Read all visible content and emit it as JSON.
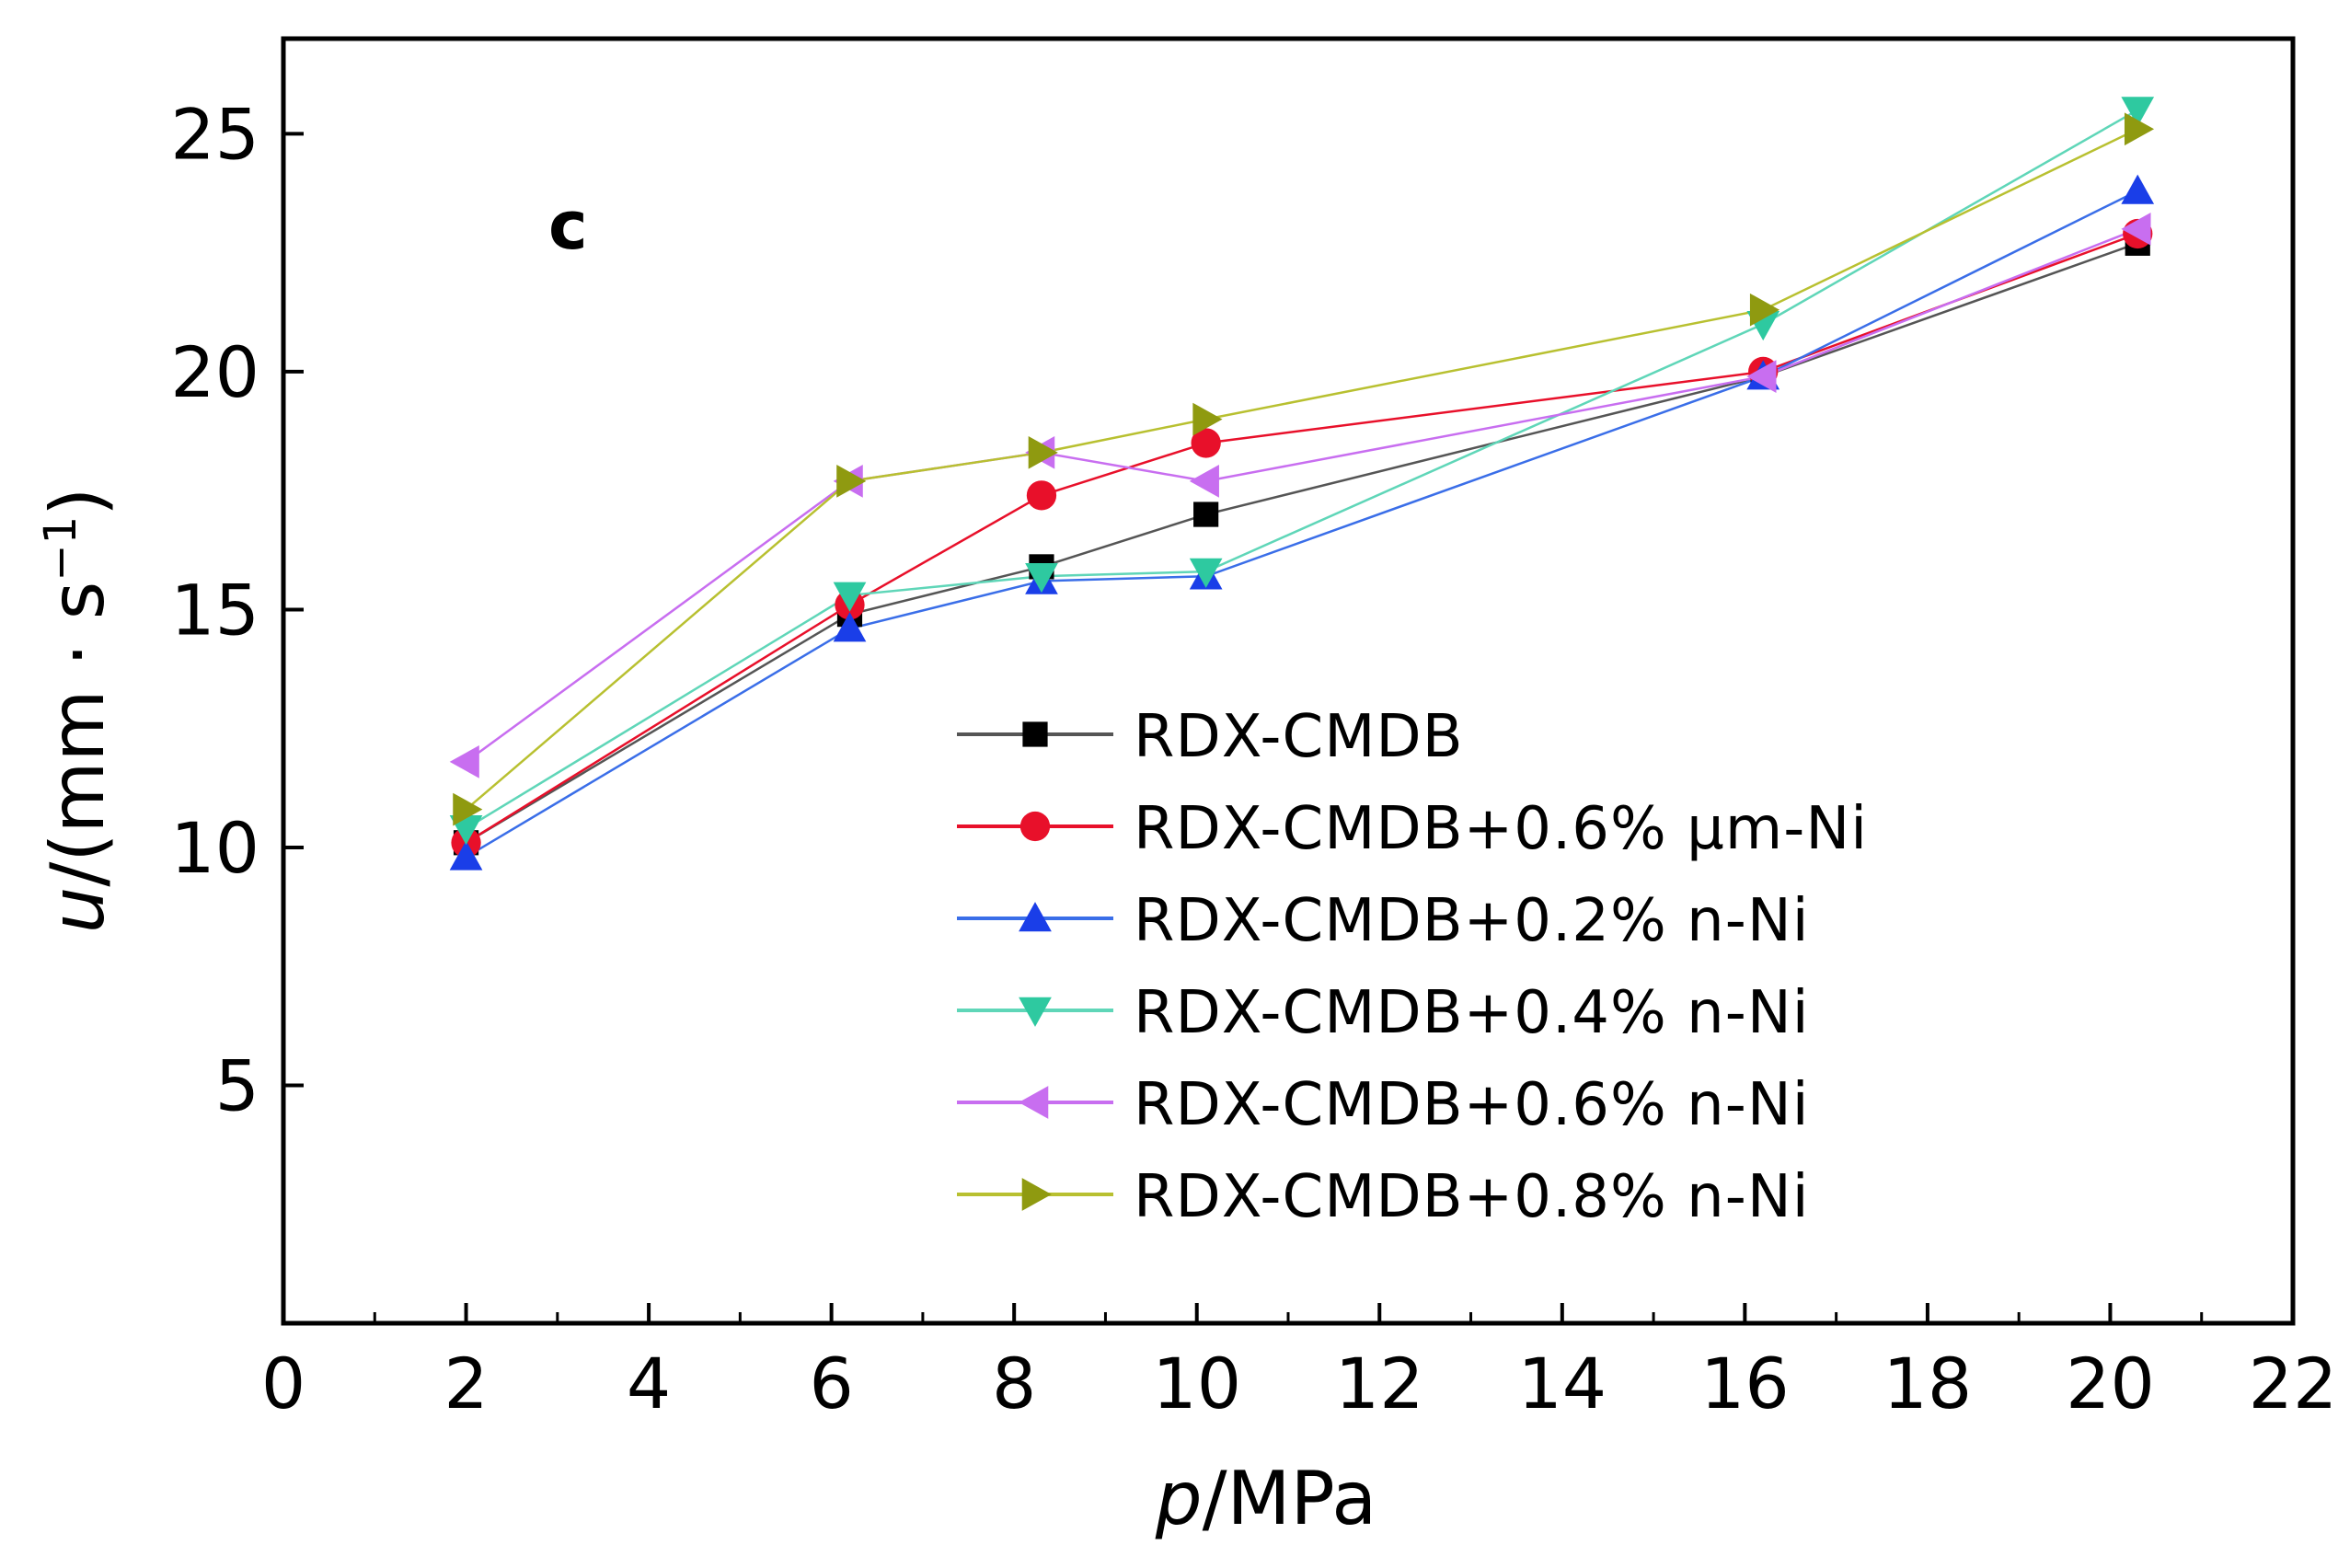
{
  "chart_data": {
    "type": "line",
    "panel_label": "c",
    "x_title": {
      "var": "p",
      "unit": "/MPa"
    },
    "y_title": {
      "var": "u",
      "unit_open": "/(mm · s",
      "unit_sup": "−1",
      "unit_close": ")"
    },
    "xlim": [
      0,
      22
    ],
    "ylim": [
      0,
      27
    ],
    "x_ticks": [
      0,
      2,
      4,
      6,
      8,
      10,
      12,
      14,
      16,
      18,
      20,
      22
    ],
    "x_tick_labels": [
      "0",
      "2",
      "4",
      "6",
      "8",
      "10",
      "12",
      "14",
      "16",
      "18",
      "20",
      "22"
    ],
    "y_ticks": [
      5,
      10,
      15,
      20,
      25
    ],
    "y_tick_labels": [
      "5",
      "10",
      "15",
      "20",
      "25"
    ],
    "legend_position": "center-right",
    "x": [
      2,
      6.2,
      8.3,
      10.1,
      16.2,
      20.3
    ],
    "series": [
      {
        "name": "RDX-CMDB",
        "marker": "square",
        "color": "#000000",
        "line_color": "#555555",
        "values": [
          10.1,
          14.9,
          15.9,
          17.0,
          19.9,
          22.7
        ]
      },
      {
        "name": "RDX-CMDB+0.6% μm-Ni",
        "marker": "circle",
        "color": "#e8102a",
        "line_color": "#e8102a",
        "values": [
          10.1,
          15.1,
          17.4,
          18.5,
          20.0,
          22.9
        ]
      },
      {
        "name": "RDX-CMDB+0.2% n-Ni",
        "marker": "triangle-up",
        "color": "#1a3ee8",
        "line_color": "#3a6ee8",
        "values": [
          9.8,
          14.6,
          15.6,
          15.7,
          19.9,
          23.8
        ]
      },
      {
        "name": "RDX-CMDB+0.4% n-Ni",
        "marker": "triangle-down",
        "color": "#2ec9a0",
        "line_color": "#5fd6b8",
        "values": [
          10.4,
          15.3,
          15.7,
          15.8,
          21.0,
          25.5
        ]
      },
      {
        "name": "RDX-CMDB+0.6% n-Ni",
        "marker": "triangle-left",
        "color": "#c86ef0",
        "line_color": "#c86ef0",
        "values": [
          11.8,
          17.7,
          18.3,
          17.7,
          19.9,
          23.0
        ]
      },
      {
        "name": "RDX-CMDB+0.8% n-Ni",
        "marker": "triangle-right",
        "color": "#8f9a10",
        "line_color": "#b8c030",
        "values": [
          10.8,
          17.7,
          18.3,
          19.0,
          21.3,
          25.1
        ]
      }
    ]
  }
}
